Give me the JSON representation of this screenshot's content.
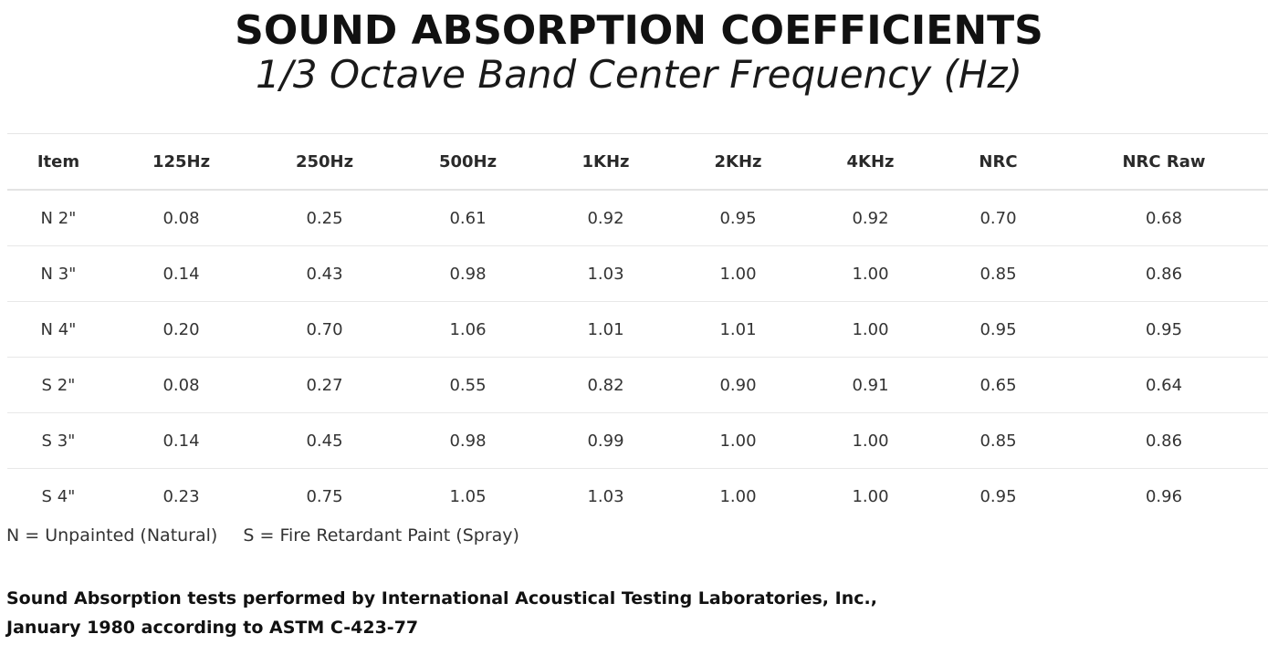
{
  "header": {
    "title": "SOUND ABSORPTION COEFFICIENTS",
    "subtitle": "1/3 Octave Band Center Frequency (Hz)"
  },
  "table": {
    "columns": [
      "Item",
      "125Hz",
      "250Hz",
      "500Hz",
      "1KHz",
      "2KHz",
      "4KHz",
      "NRC",
      "NRC Raw"
    ],
    "rows": [
      [
        "N 2\"",
        "0.08",
        "0.25",
        "0.61",
        "0.92",
        "0.95",
        "0.92",
        "0.70",
        "0.68"
      ],
      [
        "N 3\"",
        "0.14",
        "0.43",
        "0.98",
        "1.03",
        "1.00",
        "1.00",
        "0.85",
        "0.86"
      ],
      [
        "N 4\"",
        "0.20",
        "0.70",
        "1.06",
        "1.01",
        "1.01",
        "1.00",
        "0.95",
        "0.95"
      ],
      [
        "S 2\"",
        "0.08",
        "0.27",
        "0.55",
        "0.82",
        "0.90",
        "0.91",
        "0.65",
        "0.64"
      ],
      [
        "S 3\"",
        "0.14",
        "0.45",
        "0.98",
        "0.99",
        "1.00",
        "1.00",
        "0.85",
        "0.86"
      ],
      [
        "S 4\"",
        "0.23",
        "0.75",
        "1.05",
        "1.03",
        "1.00",
        "1.00",
        "0.95",
        "0.96"
      ]
    ]
  },
  "legend": {
    "n": "N = Unpainted (Natural)",
    "s": "S = Fire Retardant Paint (Spray)"
  },
  "source": {
    "line1": "Sound Absorption tests performed by International Acoustical Testing Laboratories, Inc.,",
    "line2": "January 1980 according to ASTM C-423-77"
  }
}
